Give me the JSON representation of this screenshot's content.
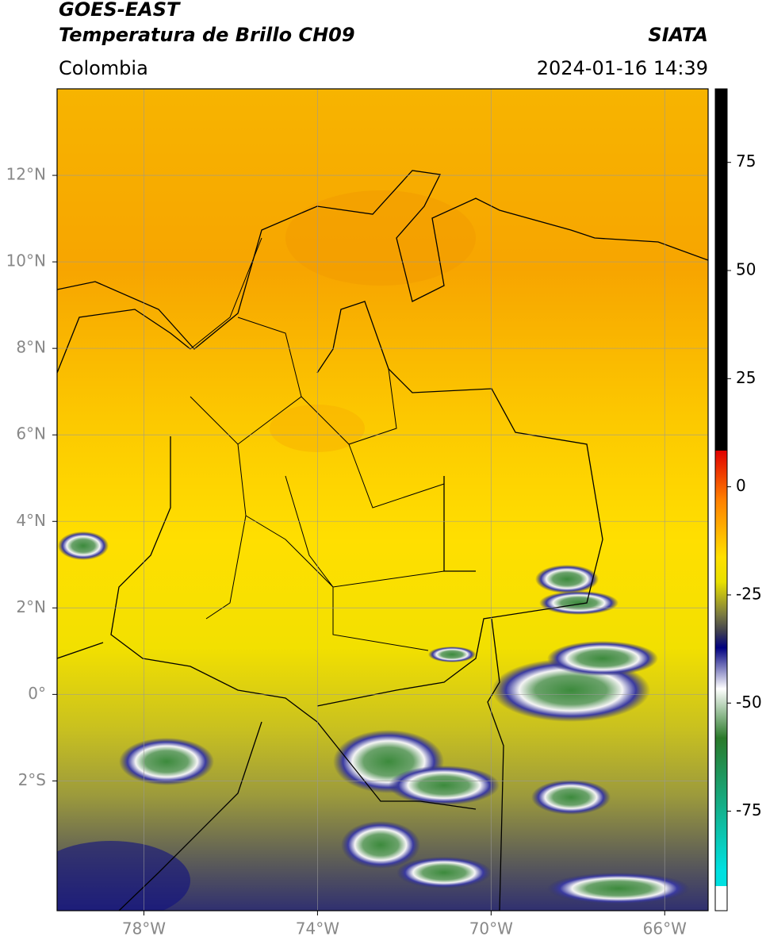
{
  "header": {
    "title": "GOES-EAST",
    "subtitle": "Temperatura de Brillo CH09",
    "region": "Colombia",
    "source": "SIATA",
    "datetime": "2024-01-16 14:39"
  },
  "map": {
    "xlim": [
      -80,
      -65
    ],
    "ylim": [
      -5,
      14
    ],
    "xticks": [
      {
        "value": -78,
        "label": "78°W"
      },
      {
        "value": -74,
        "label": "74°W"
      },
      {
        "value": -70,
        "label": "70°W"
      },
      {
        "value": -66,
        "label": "66°W"
      }
    ],
    "yticks": [
      {
        "value": 12,
        "label": "12°N"
      },
      {
        "value": 10,
        "label": "10°N"
      },
      {
        "value": 8,
        "label": "8°N"
      },
      {
        "value": 6,
        "label": "6°N"
      },
      {
        "value": 4,
        "label": "4°N"
      },
      {
        "value": 2,
        "label": "2°N"
      },
      {
        "value": 0,
        "label": "0°"
      },
      {
        "value": -2,
        "label": "2°S"
      }
    ],
    "grid": true
  },
  "colorbar": {
    "lim": [
      -98,
      92
    ],
    "ticks": [
      75,
      50,
      25,
      0,
      -25,
      -50,
      -75
    ]
  }
}
